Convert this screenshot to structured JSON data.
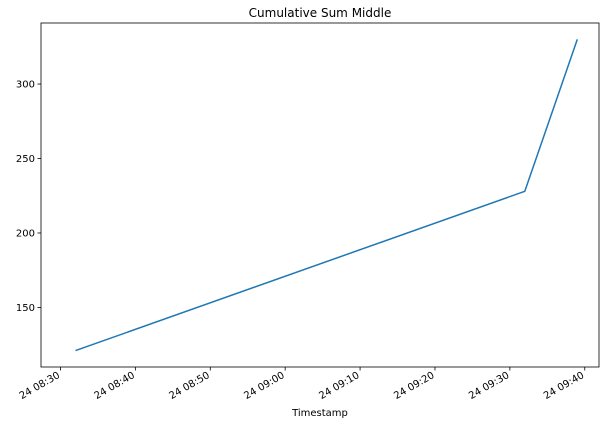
{
  "chart_data": {
    "type": "line",
    "title": "Cumulative Sum Middle",
    "xlabel": "Timestamp",
    "ylabel": "",
    "x_minutes_since_0830": [
      2,
      62,
      69
    ],
    "y": [
      121,
      228,
      330
    ],
    "xlim_minutes": [
      -2.6,
      71.9
    ],
    "ylim": [
      110,
      341
    ],
    "x_ticks": [
      {
        "minute": 0,
        "label": "24 08:30"
      },
      {
        "minute": 10,
        "label": "24 08:40"
      },
      {
        "minute": 20,
        "label": "24 08:50"
      },
      {
        "minute": 30,
        "label": "24 09:00"
      },
      {
        "minute": 40,
        "label": "24 09:10"
      },
      {
        "minute": 50,
        "label": "24 09:20"
      },
      {
        "minute": 60,
        "label": "24 09:30"
      },
      {
        "minute": 70,
        "label": "24 09:40"
      }
    ],
    "y_ticks": [
      150,
      200,
      250,
      300
    ],
    "line_color": "#1f77b4",
    "grid": false,
    "legend": "none"
  }
}
